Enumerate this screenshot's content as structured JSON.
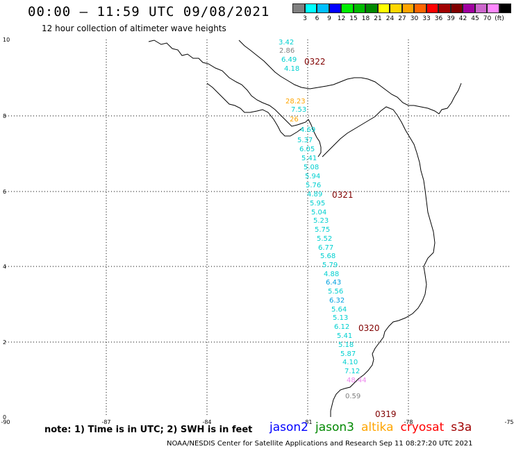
{
  "header": {
    "title": "00:00 – 11:59 UTC 09/08/2021",
    "subtitle": "12 hour collection of altimeter wave heights"
  },
  "colorbar": {
    "colors": [
      "#808080",
      "#00ffff",
      "#00bfff",
      "#0000ff",
      "#00ee00",
      "#00bb00",
      "#008800",
      "#ffff00",
      "#ffd700",
      "#ffa500",
      "#ff6600",
      "#ff0000",
      "#a00000",
      "#800000",
      "#a000a0",
      "#cc66cc",
      "#ff88ff",
      "#000000"
    ],
    "labels": [
      "3",
      "6",
      "9",
      "12",
      "15",
      "18",
      "21",
      "24",
      "27",
      "30",
      "33",
      "36",
      "39",
      "42",
      "45",
      "70",
      "(ft)"
    ]
  },
  "axes": {
    "x_ticks": [
      "-90",
      "-87",
      "-84",
      "-81",
      "-78",
      "-75"
    ],
    "y_ticks": [
      "0",
      "2",
      "4",
      "6",
      "8",
      "10"
    ]
  },
  "coastline_color": "#000000",
  "measurements": [
    {
      "text": "3.42",
      "color": "#00d0d0"
    },
    {
      "text": "2.86",
      "color": "#808080"
    },
    {
      "text": "6.49",
      "color": "#00d0d0"
    },
    {
      "text": "4.18",
      "color": "#00d0d0"
    },
    {
      "text": "28.23",
      "color": "#ffa500"
    },
    {
      "text": "7.53",
      "color": "#00d0d0"
    },
    {
      "text": "26",
      "color": "#ffa500"
    },
    {
      "text": "4.69",
      "color": "#00d0d0"
    },
    {
      "text": "5.37",
      "color": "#00d0d0"
    },
    {
      "text": "6.05",
      "color": "#00d0d0"
    },
    {
      "text": "5.41",
      "color": "#00d0d0"
    },
    {
      "text": "5.08",
      "color": "#00d0d0"
    },
    {
      "text": "5.94",
      "color": "#00d0d0"
    },
    {
      "text": "5.76",
      "color": "#00d0d0"
    },
    {
      "text": "4.89",
      "color": "#00d0d0"
    },
    {
      "text": "5.95",
      "color": "#00d0d0"
    },
    {
      "text": "5.04",
      "color": "#00d0d0"
    },
    {
      "text": "5.23",
      "color": "#00d0d0"
    },
    {
      "text": "5.75",
      "color": "#00d0d0"
    },
    {
      "text": "5.52",
      "color": "#00d0d0"
    },
    {
      "text": "6.77",
      "color": "#00d0d0"
    },
    {
      "text": "5.68",
      "color": "#00d0d0"
    },
    {
      "text": "5.79",
      "color": "#00d0d0"
    },
    {
      "text": "4.88",
      "color": "#00d0d0"
    },
    {
      "text": "6.43",
      "color": "#00a0e0"
    },
    {
      "text": "5.56",
      "color": "#00d0d0"
    },
    {
      "text": "6.32",
      "color": "#00a0e0"
    },
    {
      "text": "5.64",
      "color": "#00d0d0"
    },
    {
      "text": "5.13",
      "color": "#00d0d0"
    },
    {
      "text": "6.12",
      "color": "#00d0d0"
    },
    {
      "text": "5.41",
      "color": "#00d0d0"
    },
    {
      "text": "5.18",
      "color": "#00d0d0"
    },
    {
      "text": "5.87",
      "color": "#00d0d0"
    },
    {
      "text": "4.10",
      "color": "#00d0d0"
    },
    {
      "text": "7.12",
      "color": "#00d0d0"
    },
    {
      "text": "48.44",
      "color": "#ee88ee"
    },
    {
      "text": "0.59",
      "color": "#808080"
    }
  ],
  "time_labels": [
    {
      "text": "0322",
      "color": "#800000"
    },
    {
      "text": "0321",
      "color": "#800000"
    },
    {
      "text": "0320",
      "color": "#800000"
    },
    {
      "text": "0319",
      "color": "#800000"
    }
  ],
  "note": "note: 1) Time is in UTC; 2) SWH is in feet",
  "legend": [
    {
      "text": "jason2",
      "color": "#0000ff"
    },
    {
      "text": "jason3",
      "color": "#008800"
    },
    {
      "text": "altika",
      "color": "#ffa500"
    },
    {
      "text": "cryosat",
      "color": "#ff0000"
    },
    {
      "text": "s3a",
      "color": "#a00000"
    }
  ],
  "footer": "NOAA/NESDIS Center for Satellite Applications and Research    Sep 11 08:27:20 UTC 2021"
}
